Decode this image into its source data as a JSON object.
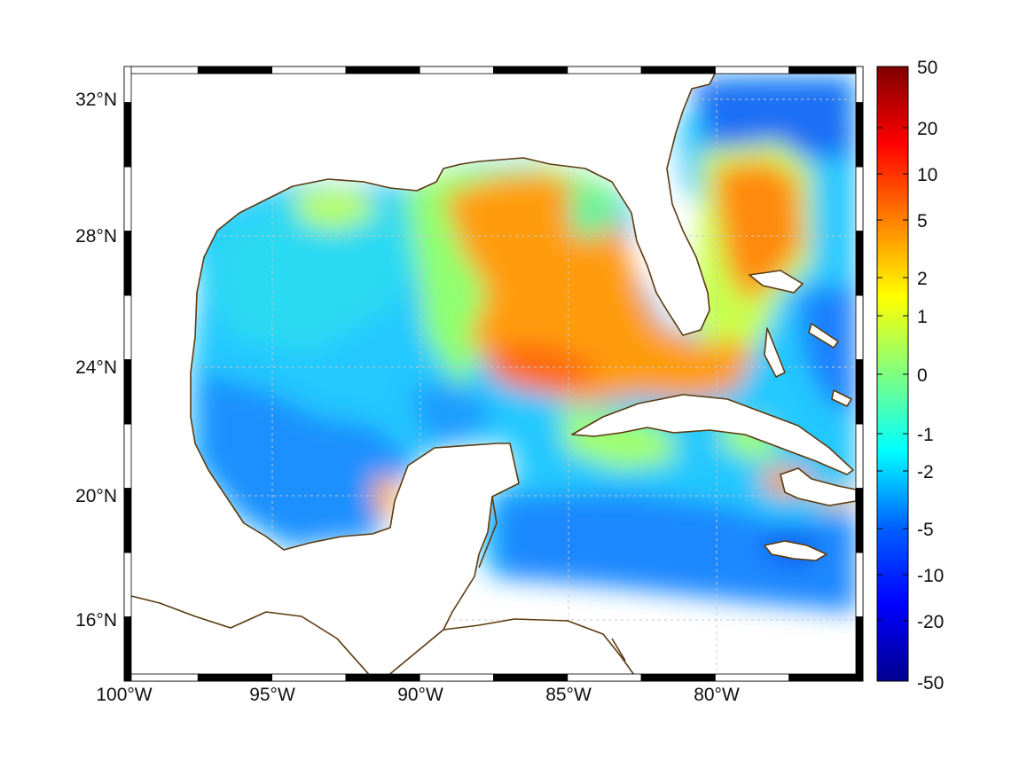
{
  "map": {
    "lon_range": [
      -100,
      -75
    ],
    "lat_range": [
      14.3,
      32.9
    ],
    "x_ticks": [
      "100°W",
      "95°W",
      "90°W",
      "85°W",
      "80°W"
    ],
    "y_ticks": [
      "32°N",
      "28°N",
      "24°N",
      "20°N",
      "16°N"
    ],
    "grid": true,
    "frame": "black-white checkered border",
    "coastline_color": "#5a3a10",
    "land_color": "#ffffff",
    "region": "Gulf of Mexico and Caribbean"
  },
  "colorbar": {
    "labels": [
      "50",
      "20",
      "10",
      "5",
      "2",
      "1",
      "0",
      "-1",
      "-2",
      "-5",
      "-10",
      "-20",
      "-50"
    ],
    "colormap": "jet",
    "colors": [
      "#00008f",
      "#0000ff",
      "#0080ff",
      "#00ffff",
      "#80ff80",
      "#ffff00",
      "#ff8000",
      "#ff0000",
      "#800000"
    ]
  }
}
